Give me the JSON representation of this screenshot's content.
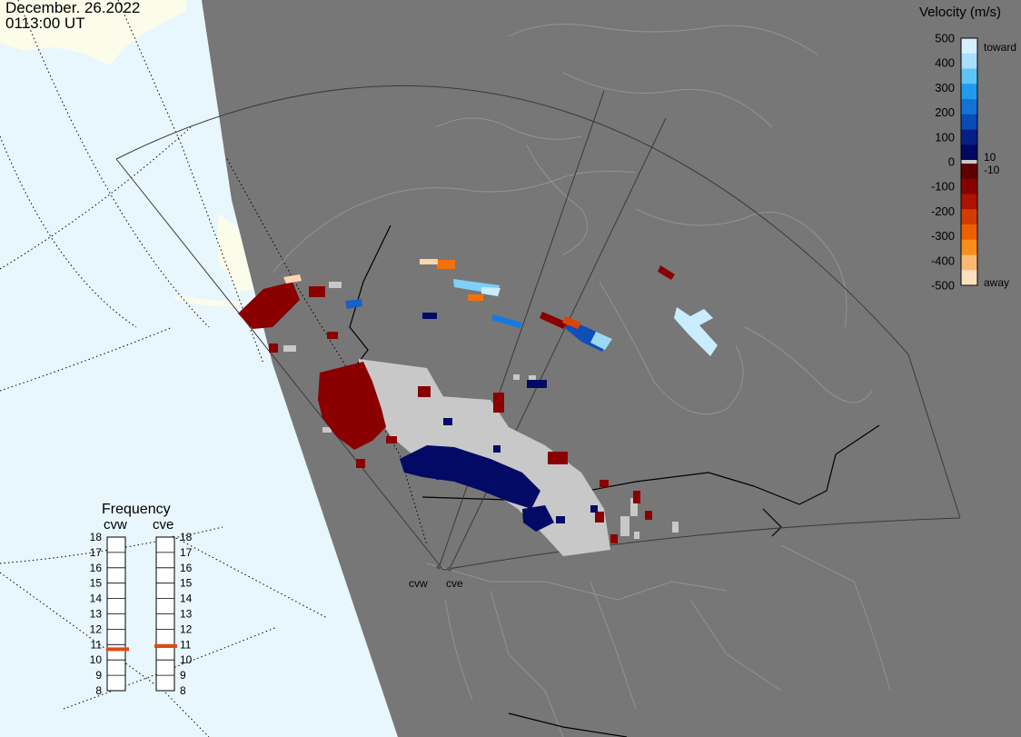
{
  "header": {
    "date": "December. 26.2022",
    "time": "0113:00 UT"
  },
  "velocity_legend": {
    "title": "Velocity (m/s)",
    "ticks": [
      "500",
      "400",
      "300",
      "200",
      "100",
      "0",
      "-100",
      "-200",
      "-300",
      "-400",
      "-500"
    ],
    "toward_label": "toward",
    "away_label": "away",
    "pos_threshold": "10",
    "neg_threshold": "-10",
    "colors": {
      "toward": [
        "#d6f0ff",
        "#a9defc",
        "#5ec3f5",
        "#1f9cee",
        "#1372d6",
        "#0a4cb5",
        "#061f86",
        "#02085f"
      ],
      "away": [
        "#5e0000",
        "#880000",
        "#ad1300",
        "#d33c00",
        "#ed6000",
        "#f98d1a",
        "#fcb870",
        "#fee0bc"
      ],
      "ground_scatter": "#c8c8c8"
    }
  },
  "frequency": {
    "title": "Frequency",
    "radars": [
      {
        "name": "cvw",
        "value": 10.7
      },
      {
        "name": "cve",
        "value": 10.9
      }
    ],
    "scale": [
      "18",
      "17",
      "16",
      "15",
      "14",
      "13",
      "12",
      "11",
      "10",
      "9",
      "8"
    ],
    "marker_color": "#e04a10"
  },
  "radar_sites": [
    {
      "name": "cvw"
    },
    {
      "name": "cve"
    }
  ],
  "map_colors": {
    "ocean": "#e8f6fe",
    "land_lit": "#fbfcea",
    "night": "#777777",
    "coast_night": "#939393",
    "border": "#000000"
  }
}
